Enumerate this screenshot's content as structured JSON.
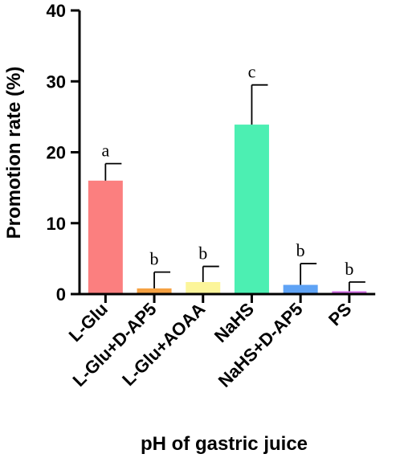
{
  "chart_data": {
    "type": "bar",
    "title": "",
    "xlabel": "pH of gastric juice",
    "ylabel": "Promotion rate (%)",
    "ylim": [
      0,
      40
    ],
    "yticks": [
      "0",
      "10",
      "20",
      "30",
      "40"
    ],
    "categories": [
      "L-Glu",
      "L-Glu+D-AP5",
      "L-Glu+AOAA",
      "NaHS",
      "NaHS+D-AP5",
      "PS"
    ],
    "values": [
      16,
      0.8,
      1.7,
      23.9,
      1.3,
      0.4
    ],
    "errors": [
      2.4,
      2.3,
      2.2,
      5.6,
      3.0,
      1.3
    ],
    "significance": [
      "a",
      "b",
      "b",
      "c",
      "b",
      "b"
    ],
    "bar_colors": [
      "#fb7f7f",
      "#f5a142",
      "#fcf59a",
      "#4cefb2",
      "#5fa3f5",
      "#d36ee6"
    ],
    "grid": false,
    "legend": "none"
  }
}
